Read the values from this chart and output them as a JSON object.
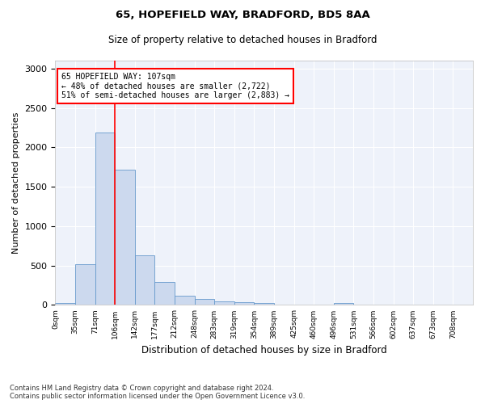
{
  "title1": "65, HOPEFIELD WAY, BRADFORD, BD5 8AA",
  "title2": "Size of property relative to detached houses in Bradford",
  "xlabel": "Distribution of detached houses by size in Bradford",
  "ylabel": "Number of detached properties",
  "bar_color": "#ccd9ee",
  "bar_edge_color": "#6699cc",
  "bin_labels": [
    "0sqm",
    "35sqm",
    "71sqm",
    "106sqm",
    "142sqm",
    "177sqm",
    "212sqm",
    "248sqm",
    "283sqm",
    "319sqm",
    "354sqm",
    "389sqm",
    "425sqm",
    "460sqm",
    "496sqm",
    "531sqm",
    "566sqm",
    "602sqm",
    "637sqm",
    "673sqm",
    "708sqm"
  ],
  "bar_values": [
    30,
    520,
    2190,
    1720,
    630,
    290,
    120,
    75,
    45,
    35,
    30,
    0,
    0,
    0,
    25,
    0,
    0,
    0,
    0,
    0,
    0
  ],
  "red_line_x": 3,
  "annotation_text": "65 HOPEFIELD WAY: 107sqm\n← 48% of detached houses are smaller (2,722)\n51% of semi-detached houses are larger (2,883) →",
  "annotation_box_color": "white",
  "annotation_box_edge": "red",
  "ylim": [
    0,
    3100
  ],
  "yticks": [
    0,
    500,
    1000,
    1500,
    2000,
    2500,
    3000
  ],
  "footnote": "Contains HM Land Registry data © Crown copyright and database right 2024.\nContains public sector information licensed under the Open Government Licence v3.0.",
  "bg_color": "#eef2fa"
}
